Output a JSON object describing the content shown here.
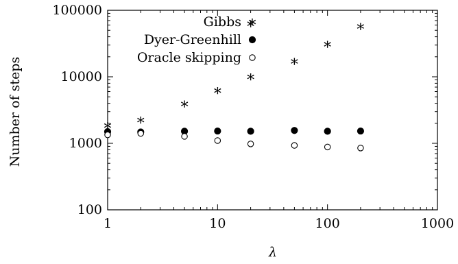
{
  "chart_data": {
    "type": "scatter",
    "xscale": "log",
    "yscale": "log",
    "xlim": [
      1,
      1000
    ],
    "ylim": [
      100,
      100000
    ],
    "xlabel": "λ",
    "ylabel": "Number of steps",
    "x_ticks": [
      1,
      10,
      100,
      1000
    ],
    "x_tick_labels": [
      "1",
      "10",
      "100",
      "1000"
    ],
    "y_ticks": [
      100,
      1000,
      10000,
      100000
    ],
    "y_tick_labels": [
      "100",
      "1000",
      "10000",
      "100000"
    ],
    "legend_position": "top-right",
    "grid": false,
    "series": [
      {
        "name": "Gibbs",
        "marker": "star",
        "x": [
          1,
          2,
          5,
          10,
          20,
          20,
          50,
          100,
          200
        ],
        "y": [
          1850,
          2250,
          3900,
          6200,
          10000,
          63000,
          17000,
          31000,
          57000
        ]
      },
      {
        "name": "Dyer-Greenhill",
        "marker": "filled-circle",
        "x": [
          1,
          2,
          5,
          10,
          20,
          50,
          100,
          200
        ],
        "y": [
          1500,
          1480,
          1520,
          1530,
          1520,
          1560,
          1520,
          1530
        ]
      },
      {
        "name": "Oracle skipping",
        "marker": "open-circle",
        "x": [
          1,
          2,
          5,
          10,
          20,
          50,
          100,
          200
        ],
        "y": [
          1340,
          1410,
          1270,
          1100,
          980,
          930,
          880,
          850
        ]
      }
    ]
  }
}
